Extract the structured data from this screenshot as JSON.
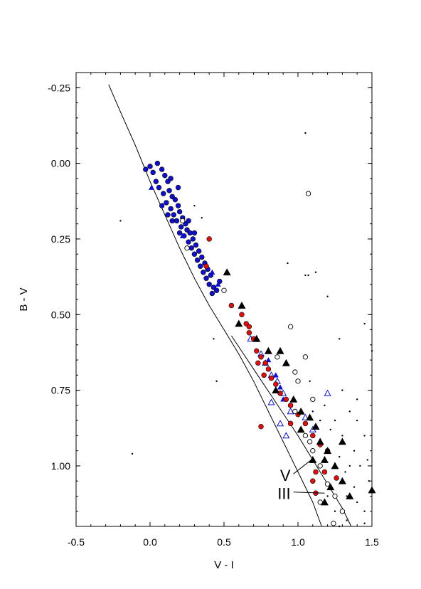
{
  "chart_data": {
    "type": "scatter",
    "title": "",
    "xlabel": "V - I",
    "ylabel": "B - V",
    "xlim": [
      -0.5,
      1.5
    ],
    "ylim": [
      1.2,
      -0.3
    ],
    "y_inverted": true,
    "xticks": [
      -0.5,
      0.0,
      0.5,
      1.0,
      1.5
    ],
    "xtick_labels": [
      "-0.5",
      "0.0",
      "0.5",
      "1.0",
      "1.5"
    ],
    "yticks": [
      -0.25,
      0.0,
      0.25,
      0.5,
      0.75,
      1.0
    ],
    "ytick_labels": [
      "-0.25",
      "0.00",
      "0.25",
      "0.50",
      "0.75",
      "1.00"
    ],
    "grid": false,
    "legend": "none",
    "colors": {
      "blue": "#1010c8",
      "red": "#e01010",
      "black": "#000000"
    },
    "annotations": [
      {
        "text": "V",
        "x": 0.95,
        "y": 1.05,
        "points_to": [
          1.09,
          0.98
        ]
      },
      {
        "text": "III",
        "x": 0.95,
        "y": 1.11,
        "points_to": [
          1.18,
          1.09
        ]
      }
    ],
    "curves": [
      {
        "id": "V",
        "points": [
          [
            -0.28,
            -0.26
          ],
          [
            -0.2,
            -0.17
          ],
          [
            -0.1,
            -0.06
          ],
          [
            0.0,
            0.06
          ],
          [
            0.1,
            0.17
          ],
          [
            0.2,
            0.28
          ],
          [
            0.3,
            0.38
          ],
          [
            0.4,
            0.47
          ],
          [
            0.5,
            0.55
          ],
          [
            0.6,
            0.63
          ],
          [
            0.7,
            0.72
          ],
          [
            0.8,
            0.82
          ],
          [
            0.9,
            0.92
          ],
          [
            1.0,
            1.02
          ],
          [
            1.1,
            1.12
          ],
          [
            1.16,
            1.2
          ]
        ]
      },
      {
        "id": "III",
        "points": [
          [
            0.55,
            0.57
          ],
          [
            0.7,
            0.68
          ],
          [
            0.85,
            0.79
          ],
          [
            1.0,
            0.9
          ],
          [
            1.15,
            1.02
          ],
          [
            1.3,
            1.14
          ],
          [
            1.36,
            1.2
          ]
        ]
      }
    ],
    "series": [
      {
        "marker": "filled-circle",
        "color": "#1010c8",
        "points": [
          [
            0.0,
            0.01
          ],
          [
            0.02,
            0.03
          ],
          [
            -0.03,
            0.02
          ],
          [
            0.05,
            0.0
          ],
          [
            0.08,
            0.02
          ],
          [
            0.1,
            0.04
          ],
          [
            0.04,
            0.06
          ],
          [
            0.06,
            0.08
          ],
          [
            0.12,
            0.06
          ],
          [
            0.13,
            0.09
          ],
          [
            0.09,
            0.1
          ],
          [
            0.15,
            0.11
          ],
          [
            0.11,
            0.13
          ],
          [
            0.17,
            0.12
          ],
          [
            0.14,
            0.15
          ],
          [
            0.19,
            0.14
          ],
          [
            0.16,
            0.17
          ],
          [
            0.2,
            0.16
          ],
          [
            0.22,
            0.18
          ],
          [
            0.18,
            0.19
          ],
          [
            0.24,
            0.2
          ],
          [
            0.21,
            0.21
          ],
          [
            0.25,
            0.22
          ],
          [
            0.23,
            0.24
          ],
          [
            0.27,
            0.23
          ],
          [
            0.26,
            0.26
          ],
          [
            0.29,
            0.25
          ],
          [
            0.28,
            0.28
          ],
          [
            0.31,
            0.27
          ],
          [
            0.3,
            0.3
          ],
          [
            0.33,
            0.29
          ],
          [
            0.32,
            0.32
          ],
          [
            0.35,
            0.31
          ],
          [
            0.34,
            0.34
          ],
          [
            0.37,
            0.33
          ],
          [
            0.36,
            0.36
          ],
          [
            0.39,
            0.35
          ],
          [
            0.38,
            0.38
          ],
          [
            0.41,
            0.37
          ],
          [
            0.4,
            0.4
          ],
          [
            0.43,
            0.41
          ],
          [
            0.42,
            0.43
          ],
          [
            0.45,
            0.42
          ],
          [
            0.47,
            0.39
          ],
          [
            0.15,
            0.19
          ],
          [
            0.2,
            0.23
          ],
          [
            0.12,
            0.17
          ],
          [
            0.26,
            0.19
          ],
          [
            0.08,
            0.14
          ],
          [
            0.3,
            0.23
          ],
          [
            0.19,
            0.08
          ],
          [
            0.14,
            0.05
          ]
        ]
      },
      {
        "marker": "filled-triangle",
        "color": "#1010c8",
        "points": [
          [
            0.01,
            0.08
          ],
          [
            0.22,
            0.24
          ],
          [
            0.42,
            0.36
          ],
          [
            0.46,
            0.4
          ],
          [
            0.8,
            0.65
          ],
          [
            0.85,
            0.7
          ],
          [
            0.9,
            0.78
          ],
          [
            0.88,
            0.74
          ]
        ]
      },
      {
        "marker": "open-triangle",
        "color": "#1010c8",
        "points": [
          [
            0.68,
            0.58
          ],
          [
            0.75,
            0.63
          ],
          [
            0.78,
            0.66
          ],
          [
            0.82,
            0.7
          ],
          [
            0.86,
            0.72
          ],
          [
            0.9,
            0.76
          ],
          [
            0.82,
            0.79
          ],
          [
            0.95,
            0.82
          ],
          [
            0.88,
            0.86
          ],
          [
            0.92,
            0.9
          ],
          [
            1.05,
            0.84
          ],
          [
            1.1,
            0.88
          ],
          [
            1.2,
            0.76
          ]
        ]
      },
      {
        "marker": "filled-circle",
        "color": "#e01010",
        "points": [
          [
            0.38,
            0.34
          ],
          [
            0.4,
            0.25
          ],
          [
            0.55,
            0.47
          ],
          [
            0.62,
            0.5
          ],
          [
            0.65,
            0.53
          ],
          [
            0.67,
            0.56
          ],
          [
            0.7,
            0.58
          ],
          [
            0.72,
            0.62
          ],
          [
            0.75,
            0.64
          ],
          [
            0.78,
            0.66
          ],
          [
            0.8,
            0.68
          ],
          [
            0.82,
            0.71
          ],
          [
            0.85,
            0.73
          ],
          [
            0.88,
            0.76
          ],
          [
            0.92,
            0.78
          ],
          [
            0.95,
            0.8
          ],
          [
            1.0,
            0.83
          ],
          [
            1.05,
            0.86
          ],
          [
            0.75,
            0.87
          ],
          [
            0.95,
            0.86
          ],
          [
            1.1,
            0.9
          ],
          [
            1.15,
            0.93
          ],
          [
            1.2,
            0.95
          ],
          [
            1.12,
            1.02
          ],
          [
            1.18,
            1.02
          ],
          [
            1.1,
            1.05
          ],
          [
            1.12,
            1.09
          ],
          [
            1.26,
            1.04
          ],
          [
            0.67,
            0.54
          ],
          [
            0.73,
            0.66
          ],
          [
            0.77,
            0.7
          ]
        ]
      },
      {
        "marker": "filled-triangle",
        "color": "#000000",
        "points": [
          [
            0.52,
            0.36
          ],
          [
            0.62,
            0.47
          ],
          [
            0.6,
            0.53
          ],
          [
            0.72,
            0.58
          ],
          [
            0.8,
            0.62
          ],
          [
            0.88,
            0.62
          ],
          [
            0.92,
            0.66
          ],
          [
            0.85,
            0.75
          ],
          [
            0.97,
            0.78
          ],
          [
            1.02,
            0.82
          ],
          [
            1.08,
            0.84
          ],
          [
            1.12,
            0.87
          ],
          [
            1.15,
            0.92
          ],
          [
            1.2,
            0.95
          ],
          [
            1.18,
            0.98
          ],
          [
            1.25,
            1.0
          ],
          [
            1.3,
            1.05
          ],
          [
            1.22,
            1.07
          ],
          [
            1.35,
            1.1
          ],
          [
            1.5,
            1.08
          ],
          [
            1.18,
            1.12
          ],
          [
            1.02,
            0.88
          ],
          [
            1.1,
            0.98
          ],
          [
            1.3,
            0.92
          ]
        ]
      },
      {
        "marker": "open-circle",
        "color": "#000000",
        "points": [
          [
            0.95,
            0.54
          ],
          [
            1.05,
            0.64
          ],
          [
            0.98,
            0.69
          ],
          [
            1.0,
            0.72
          ],
          [
            1.1,
            0.78
          ],
          [
            0.98,
            0.82
          ],
          [
            1.05,
            0.9
          ],
          [
            1.1,
            0.95
          ],
          [
            1.15,
            1.0
          ],
          [
            1.08,
            0.92
          ],
          [
            1.2,
            1.06
          ],
          [
            1.25,
            1.1
          ],
          [
            1.3,
            1.15
          ],
          [
            1.15,
            1.12
          ],
          [
            1.24,
            1.19
          ],
          [
            1.07,
            0.1
          ],
          [
            0.5,
            0.42
          ],
          [
            0.25,
            0.28
          ],
          [
            0.22,
            0.19
          ],
          [
            0.86,
            0.64
          ]
        ]
      },
      {
        "marker": "small-dot",
        "color": "#000000",
        "points": [
          [
            -0.2,
            0.19
          ],
          [
            0.3,
            0.14
          ],
          [
            0.35,
            0.18
          ],
          [
            -0.12,
            0.96
          ],
          [
            0.43,
            0.58
          ],
          [
            0.45,
            0.72
          ],
          [
            1.05,
            -0.1
          ],
          [
            0.93,
            0.33
          ],
          [
            1.05,
            0.37
          ],
          [
            1.07,
            0.37
          ],
          [
            1.12,
            0.36
          ],
          [
            1.2,
            0.44
          ],
          [
            1.28,
            0.58
          ],
          [
            1.45,
            0.53
          ],
          [
            1.5,
            0.62
          ],
          [
            1.3,
            0.75
          ],
          [
            1.35,
            0.82
          ],
          [
            1.4,
            0.85
          ],
          [
            1.45,
            0.9
          ],
          [
            1.38,
            0.95
          ],
          [
            1.42,
            1.0
          ],
          [
            1.48,
            1.05
          ],
          [
            1.33,
            1.1
          ],
          [
            1.4,
            1.12
          ],
          [
            1.45,
            1.15
          ],
          [
            1.25,
            0.85
          ],
          [
            1.3,
            0.9
          ],
          [
            1.35,
            1.0
          ],
          [
            1.28,
            0.97
          ],
          [
            1.2,
            1.1
          ],
          [
            1.25,
            1.15
          ],
          [
            1.22,
            0.88
          ],
          [
            1.4,
            0.78
          ],
          [
            1.47,
            0.98
          ],
          [
            1.1,
            0.82
          ],
          [
            1.15,
            0.85
          ],
          [
            1.33,
            1.18
          ],
          [
            1.28,
            1.2
          ],
          [
            1.45,
            1.19
          ],
          [
            1.38,
            1.07
          ],
          [
            1.32,
            1.02
          ],
          [
            1.18,
            0.8
          ],
          [
            1.08,
            0.72
          ]
        ]
      }
    ]
  }
}
